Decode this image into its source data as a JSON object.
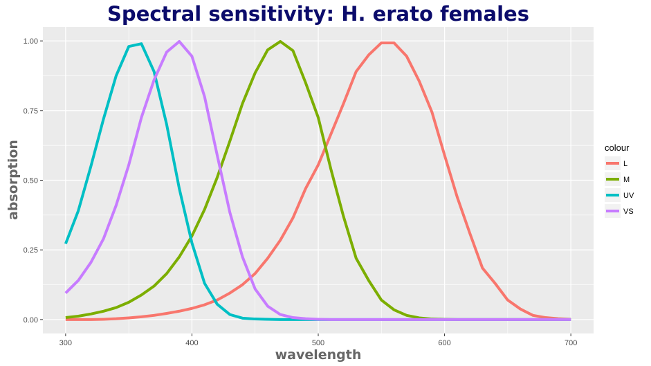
{
  "chart_data": {
    "type": "line",
    "title": "Spectral sensitivity: H. erato females",
    "xlabel": "wavelength",
    "ylabel": "absorption",
    "xlim": [
      282,
      718
    ],
    "ylim": [
      -0.05,
      1.05
    ],
    "x_ticks": [
      300,
      400,
      500,
      600,
      700
    ],
    "y_ticks": [
      0,
      0.25,
      0.5,
      0.75,
      1.0
    ],
    "x_tick_labels": [
      "300",
      "400",
      "500",
      "600",
      "700"
    ],
    "y_tick_labels": [
      "0.00",
      "0.25",
      "0.50",
      "0.75",
      "1.00"
    ],
    "grid": true,
    "legend": {
      "title": "colour",
      "position": "right"
    },
    "x": [
      300,
      310,
      320,
      330,
      340,
      350,
      360,
      370,
      380,
      390,
      400,
      410,
      420,
      430,
      440,
      450,
      460,
      470,
      480,
      490,
      500,
      510,
      520,
      530,
      540,
      550,
      560,
      570,
      580,
      590,
      600,
      610,
      620,
      630,
      640,
      650,
      660,
      670,
      680,
      690,
      700
    ],
    "series": [
      {
        "name": "L",
        "color": "#F8766D",
        "values": [
          0.0,
          0.0,
          0.0,
          0.001,
          0.003,
          0.006,
          0.01,
          0.015,
          0.022,
          0.03,
          0.04,
          0.053,
          0.07,
          0.095,
          0.125,
          0.165,
          0.22,
          0.285,
          0.365,
          0.47,
          0.555,
          0.665,
          0.775,
          0.89,
          0.95,
          0.993,
          0.993,
          0.945,
          0.855,
          0.745,
          0.59,
          0.44,
          0.31,
          0.185,
          0.13,
          0.07,
          0.038,
          0.015,
          0.007,
          0.003,
          0.001
        ]
      },
      {
        "name": "M",
        "color": "#7CAE00",
        "values": [
          0.007,
          0.012,
          0.02,
          0.03,
          0.043,
          0.062,
          0.088,
          0.12,
          0.165,
          0.225,
          0.3,
          0.395,
          0.51,
          0.64,
          0.775,
          0.885,
          0.968,
          0.998,
          0.965,
          0.85,
          0.725,
          0.54,
          0.37,
          0.22,
          0.14,
          0.07,
          0.035,
          0.015,
          0.006,
          0.002,
          0.001,
          0.0,
          0.0,
          0.0,
          0.0,
          0.0,
          0.0,
          0.0,
          0.0,
          0.0,
          0.0
        ]
      },
      {
        "name": "UV",
        "color": "#00BFC4",
        "values": [
          0.272,
          0.39,
          0.55,
          0.72,
          0.875,
          0.98,
          0.99,
          0.89,
          0.7,
          0.47,
          0.275,
          0.13,
          0.055,
          0.018,
          0.005,
          0.002,
          0.001,
          0.0,
          0.0,
          0.0,
          0.0,
          0.0,
          0.0,
          0.0,
          0.0,
          0.0,
          0.0,
          0.0,
          0.0,
          0.0,
          0.0,
          0.0,
          0.0,
          0.0,
          0.0,
          0.0,
          0.0,
          0.0,
          0.0,
          0.0,
          0.0
        ]
      },
      {
        "name": "VS",
        "color": "#C77CFF",
        "values": [
          0.095,
          0.14,
          0.205,
          0.29,
          0.41,
          0.555,
          0.725,
          0.86,
          0.96,
          0.998,
          0.945,
          0.8,
          0.59,
          0.385,
          0.225,
          0.11,
          0.048,
          0.018,
          0.007,
          0.003,
          0.001,
          0.0,
          0.0,
          0.0,
          0.0,
          0.0,
          0.0,
          0.0,
          0.0,
          0.0,
          0.0,
          0.0,
          0.0,
          0.0,
          0.0,
          0.0,
          0.0,
          0.0,
          0.0,
          0.0,
          0.0
        ]
      }
    ]
  }
}
